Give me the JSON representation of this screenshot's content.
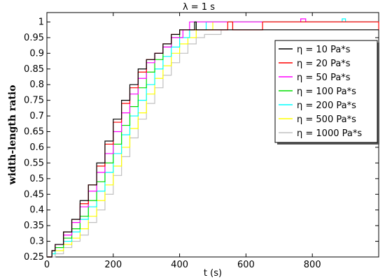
{
  "chart_data": {
    "type": "line",
    "title": "λ = 1 s",
    "xlabel": "t (s)",
    "ylabel": "width-length ratio",
    "xlim": [
      0,
      1000
    ],
    "ylim": [
      0.25,
      1.03
    ],
    "x_ticks": [
      "0",
      "200",
      "400",
      "600",
      "800"
    ],
    "y_ticks": [
      "0.25",
      "0.3",
      "0.35",
      "0.4",
      "0.45",
      "0.5",
      "0.55",
      "0.6",
      "0.65",
      "0.7",
      "0.75",
      "0.8",
      "0.85",
      "0.9",
      "0.95",
      "1"
    ],
    "grid": false,
    "legend_position": "top-right",
    "series": [
      {
        "name": "η = 10 Pa*s",
        "color": "#000000",
        "x": [
          0,
          15,
          25,
          50,
          75,
          100,
          125,
          150,
          175,
          200,
          225,
          250,
          275,
          300,
          325,
          350,
          375,
          400,
          430,
          445,
          450,
          1000
        ],
        "y": [
          0.25,
          0.27,
          0.29,
          0.33,
          0.37,
          0.43,
          0.48,
          0.55,
          0.62,
          0.69,
          0.75,
          0.8,
          0.85,
          0.88,
          0.9,
          0.93,
          0.96,
          0.975,
          0.975,
          1.0,
          0.975,
          0.975
        ]
      },
      {
        "name": "η = 20 Pa*s",
        "color": "#ff0000",
        "x": [
          0,
          15,
          25,
          50,
          75,
          100,
          125,
          150,
          175,
          200,
          225,
          250,
          275,
          300,
          325,
          350,
          375,
          400,
          540,
          545,
          560,
          640,
          650,
          1000
        ],
        "y": [
          0.25,
          0.27,
          0.29,
          0.33,
          0.37,
          0.42,
          0.48,
          0.54,
          0.61,
          0.68,
          0.74,
          0.79,
          0.84,
          0.88,
          0.9,
          0.93,
          0.96,
          0.975,
          0.975,
          1.0,
          0.975,
          0.975,
          1.0,
          0.975
        ]
      },
      {
        "name": "η = 50 Pa*s",
        "color": "#ff00ff",
        "x": [
          0,
          15,
          25,
          50,
          75,
          100,
          125,
          150,
          175,
          200,
          225,
          250,
          275,
          300,
          325,
          350,
          375,
          410,
          420,
          430,
          760,
          765,
          780,
          1000
        ],
        "y": [
          0.25,
          0.27,
          0.29,
          0.32,
          0.36,
          0.41,
          0.46,
          0.52,
          0.58,
          0.65,
          0.71,
          0.77,
          0.82,
          0.87,
          0.9,
          0.92,
          0.95,
          0.975,
          0.975,
          1.0,
          1.0,
          1.01,
          1.0,
          1.0
        ]
      },
      {
        "name": "η = 100 Pa*s",
        "color": "#00dd00",
        "x": [
          0,
          15,
          25,
          50,
          75,
          100,
          125,
          150,
          175,
          200,
          225,
          250,
          275,
          300,
          325,
          350,
          375,
          400,
          425,
          450,
          1000
        ],
        "y": [
          0.25,
          0.27,
          0.28,
          0.31,
          0.34,
          0.38,
          0.43,
          0.49,
          0.55,
          0.61,
          0.67,
          0.73,
          0.79,
          0.84,
          0.88,
          0.92,
          0.95,
          0.975,
          0.975,
          1.0,
          1.0
        ]
      },
      {
        "name": "η = 200 Pa*s",
        "color": "#00ffff",
        "x": [
          0,
          15,
          25,
          50,
          75,
          100,
          125,
          150,
          175,
          200,
          225,
          250,
          275,
          300,
          325,
          350,
          375,
          400,
          430,
          480,
          880,
          890,
          900,
          1000
        ],
        "y": [
          0.25,
          0.26,
          0.28,
          0.3,
          0.33,
          0.37,
          0.41,
          0.46,
          0.52,
          0.58,
          0.64,
          0.7,
          0.75,
          0.8,
          0.85,
          0.89,
          0.92,
          0.95,
          0.975,
          1.0,
          1.0,
          1.01,
          1.0,
          1.0
        ]
      },
      {
        "name": "η = 500 Pa*s",
        "color": "#ffff00",
        "x": [
          0,
          15,
          25,
          50,
          75,
          100,
          125,
          150,
          175,
          200,
          225,
          250,
          275,
          300,
          325,
          350,
          375,
          400,
          425,
          450,
          500,
          1000
        ],
        "y": [
          0.25,
          0.26,
          0.27,
          0.29,
          0.31,
          0.34,
          0.38,
          0.43,
          0.48,
          0.54,
          0.6,
          0.66,
          0.71,
          0.77,
          0.82,
          0.86,
          0.9,
          0.93,
          0.95,
          0.975,
          1.0,
          1.0
        ]
      },
      {
        "name": "η = 1000 Pa*s",
        "color": "#c0c0c0",
        "x": [
          0,
          25,
          50,
          75,
          100,
          125,
          150,
          175,
          200,
          225,
          250,
          275,
          300,
          325,
          350,
          375,
          400,
          425,
          450,
          475,
          525,
          560,
          1000
        ],
        "y": [
          0.25,
          0.26,
          0.28,
          0.3,
          0.32,
          0.36,
          0.4,
          0.45,
          0.51,
          0.57,
          0.63,
          0.69,
          0.74,
          0.79,
          0.83,
          0.87,
          0.9,
          0.93,
          0.95,
          0.96,
          0.975,
          1.0,
          1.0
        ]
      }
    ]
  }
}
